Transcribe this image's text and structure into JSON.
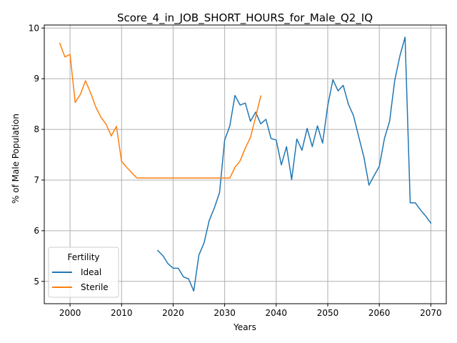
{
  "chart_data": {
    "type": "line",
    "title": "Score_4_in_JOB_SHORT_HOURS_for_Male_Q2_IQ",
    "xlabel": "Years",
    "ylabel": "% of Male Population",
    "xlim": [
      1995,
      2073
    ],
    "ylim": [
      4.56,
      10.06
    ],
    "xticks": [
      2000,
      2010,
      2020,
      2030,
      2040,
      2050,
      2060,
      2070
    ],
    "yticks": [
      5,
      6,
      7,
      8,
      9,
      10
    ],
    "grid": true,
    "legend": {
      "title": "Fertility",
      "placement": "lower-left"
    },
    "series": [
      {
        "name": "Ideal",
        "color": "#1f77b4",
        "x": [
          2017,
          2018,
          2019,
          2020,
          2021,
          2022,
          2023,
          2024,
          2025,
          2026,
          2027,
          2028,
          2029,
          2030,
          2031,
          2032,
          2033,
          2034,
          2035,
          2036,
          2037,
          2038,
          2039,
          2040,
          2041,
          2042,
          2043,
          2044,
          2045,
          2046,
          2047,
          2048,
          2049,
          2050,
          2051,
          2052,
          2053,
          2054,
          2055,
          2056,
          2057,
          2058,
          2059,
          2060,
          2061,
          2062,
          2063,
          2064,
          2065,
          2066,
          2067,
          2068,
          2069,
          2070
        ],
        "y": [
          5.61,
          5.51,
          5.35,
          5.26,
          5.26,
          5.09,
          5.05,
          4.81,
          5.52,
          5.76,
          6.2,
          6.45,
          6.75,
          7.79,
          8.07,
          8.67,
          8.48,
          8.52,
          8.16,
          8.34,
          8.11,
          8.2,
          7.82,
          7.79,
          7.3,
          7.66,
          7.01,
          7.81,
          7.59,
          8.02,
          7.66,
          8.07,
          7.73,
          8.47,
          8.98,
          8.76,
          8.87,
          8.5,
          8.27,
          7.86,
          7.46,
          6.9,
          7.09,
          7.27,
          7.82,
          8.16,
          8.97,
          9.45,
          9.82,
          6.55,
          6.55,
          6.41,
          6.29,
          6.15
        ]
      },
      {
        "name": "Sterile",
        "color": "#ff7f0e",
        "x": [
          1998,
          1999,
          2000,
          2001,
          2002,
          2003,
          2004,
          2005,
          2006,
          2007,
          2008,
          2009,
          2010,
          2011,
          2012,
          2013,
          2014,
          2015,
          2016,
          2017,
          2018,
          2019,
          2020,
          2021,
          2022,
          2023,
          2024,
          2025,
          2026,
          2027,
          2028,
          2029,
          2030,
          2031,
          2032,
          2033,
          2034,
          2035,
          2036,
          2037
        ],
        "y": [
          9.7,
          9.43,
          9.48,
          8.53,
          8.69,
          8.96,
          8.72,
          8.44,
          8.24,
          8.1,
          7.87,
          8.06,
          7.37,
          7.25,
          7.14,
          7.04,
          7.04,
          7.04,
          7.04,
          7.04,
          7.04,
          7.04,
          7.04,
          7.04,
          7.04,
          7.04,
          7.04,
          7.04,
          7.04,
          7.04,
          7.04,
          7.04,
          7.04,
          7.04,
          7.25,
          7.38,
          7.63,
          7.84,
          8.24,
          8.66
        ]
      }
    ]
  }
}
